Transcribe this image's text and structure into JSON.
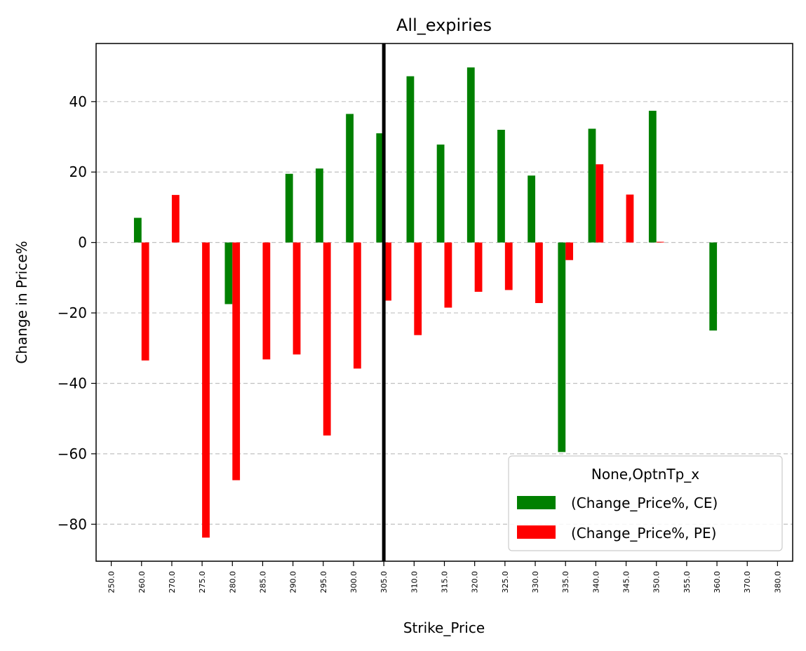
{
  "chart_data": {
    "type": "bar",
    "title": "All_expiries",
    "xlabel": "Strike_Price",
    "ylabel": "Change in Price%",
    "categories": [
      "250.0",
      "260.0",
      "270.0",
      "275.0",
      "280.0",
      "285.0",
      "290.0",
      "295.0",
      "300.0",
      "305.0",
      "310.0",
      "315.0",
      "320.0",
      "325.0",
      "330.0",
      "335.0",
      "340.0",
      "345.0",
      "350.0",
      "355.0",
      "360.0",
      "370.0",
      "380.0"
    ],
    "series": [
      {
        "name": "(Change_Price%, CE)",
        "color": "#008000",
        "values": [
          null,
          7.0,
          null,
          null,
          -17.5,
          null,
          19.5,
          21.0,
          36.5,
          31.0,
          47.2,
          27.8,
          49.7,
          32.0,
          19.0,
          -59.5,
          32.3,
          null,
          37.4,
          null,
          -25.0,
          null,
          null
        ]
      },
      {
        "name": "(Change_Price%, PE)",
        "color": "#ff0000",
        "values": [
          null,
          -33.5,
          13.5,
          -83.8,
          -67.5,
          -33.2,
          -31.8,
          -54.8,
          -35.8,
          -16.5,
          -26.3,
          -18.5,
          -14.0,
          -13.5,
          -17.2,
          -5.0,
          22.2,
          13.6,
          0.2,
          null,
          null,
          null,
          null
        ]
      }
    ],
    "ylim": [
      -90.5,
      56.5
    ],
    "yticks": [
      40,
      20,
      0,
      -20,
      -40,
      -60,
      -80
    ],
    "ytick_labels": [
      "40",
      "20",
      "0",
      "−20",
      "−40",
      "−60",
      "−80"
    ],
    "grid": "y-dashed",
    "reference_line": {
      "category": "305.0",
      "color": "#000000"
    },
    "legend": {
      "title": "None,OptnTp_x",
      "placement": "bottom-right"
    }
  }
}
